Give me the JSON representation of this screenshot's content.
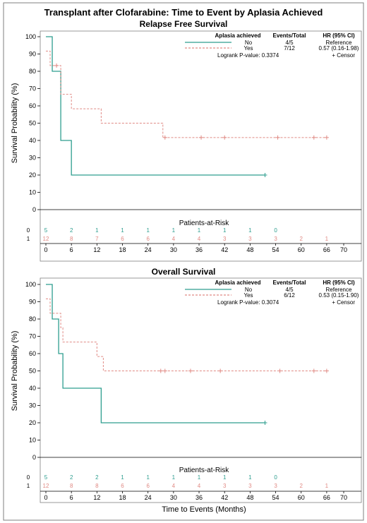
{
  "title": "Transplant after Clofarabine: Time to Event by Aplasia Achieved",
  "colors": {
    "no": "#2e9e8f",
    "yes": "#e08a84",
    "axis": "#000000",
    "frame": "#7f7f7f"
  },
  "chart_data": [
    {
      "type": "line",
      "subtitle": "Relapse Free Survival",
      "ylabel": "Survival Probability (%)",
      "xlabel": "",
      "xlim": [
        0,
        70
      ],
      "ylim": [
        0,
        100
      ],
      "x_ticks": [
        "0",
        "6",
        "12",
        "18",
        "24",
        "30",
        "36",
        "42",
        "48",
        "54",
        "60",
        "66",
        "70"
      ],
      "y_ticks": [
        "0",
        "10",
        "20",
        "30",
        "40",
        "50",
        "60",
        "70",
        "80",
        "90",
        "100"
      ],
      "legend": {
        "headers": {
          "group": "Aplasia achieved",
          "events": "Events/Total",
          "hr": "HR (95% CI)"
        },
        "rows": [
          {
            "key": "no",
            "name": "No",
            "events": "4/5",
            "hr": "Reference"
          },
          {
            "key": "yes",
            "name": "Yes",
            "events": "7/12",
            "hr": "0.57 (0.16-1.98)"
          }
        ],
        "pvalue": "Logrank P-value: 0.3374",
        "censor": "+ Censor"
      },
      "series": [
        {
          "key": "no",
          "name": "No",
          "style": "solid",
          "steps": [
            [
              0,
              100
            ],
            [
              1.5,
              80
            ],
            [
              3.5,
              40
            ],
            [
              6,
              20
            ],
            [
              51.5,
              20
            ]
          ],
          "censors": [
            [
              51.5,
              20
            ]
          ]
        },
        {
          "key": "yes",
          "name": "Yes",
          "style": "dashed",
          "steps": [
            [
              0,
              91.7
            ],
            [
              1,
              83.3
            ],
            [
              3.5,
              66.7
            ],
            [
              6,
              58.3
            ],
            [
              13,
              50
            ],
            [
              27.5,
              41.7
            ],
            [
              66,
              41.7
            ]
          ],
          "censors": [
            [
              2.5,
              83.3
            ],
            [
              28,
              41.7
            ],
            [
              36.5,
              41.7
            ],
            [
              42,
              41.7
            ],
            [
              54.5,
              41.7
            ],
            [
              63,
              41.7
            ],
            [
              66,
              41.7
            ]
          ]
        }
      ],
      "risk": {
        "title": "Patients-at-Risk",
        "groups": [
          {
            "key": "no",
            "label": "0",
            "counts": [
              "5",
              "2",
              "1",
              "1",
              "1",
              "1",
              "1",
              "1",
              "1",
              "0"
            ]
          },
          {
            "key": "yes",
            "label": "1",
            "counts": [
              "12",
              "8",
              "7",
              "6",
              "6",
              "4",
              "4",
              "3",
              "3",
              "3",
              "2",
              "1"
            ]
          }
        ]
      }
    },
    {
      "type": "line",
      "subtitle": "Overall Survival",
      "ylabel": "Survival Probability (%)",
      "xlabel": "Time to Events (Months)",
      "xlim": [
        0,
        70
      ],
      "ylim": [
        0,
        100
      ],
      "x_ticks": [
        "0",
        "6",
        "12",
        "18",
        "24",
        "30",
        "36",
        "42",
        "48",
        "54",
        "60",
        "66",
        "70"
      ],
      "y_ticks": [
        "0",
        "10",
        "20",
        "30",
        "40",
        "50",
        "60",
        "70",
        "80",
        "90",
        "100"
      ],
      "legend": {
        "headers": {
          "group": "Aplasia achieved",
          "events": "Events/Total",
          "hr": "HR (95% CI)"
        },
        "rows": [
          {
            "key": "no",
            "name": "No",
            "events": "4/5",
            "hr": "Reference"
          },
          {
            "key": "yes",
            "name": "Yes",
            "events": "6/12",
            "hr": "0.53 (0.15-1.90)"
          }
        ],
        "pvalue": "Logrank P-value: 0.3074",
        "censor": "+ Censor"
      },
      "series": [
        {
          "key": "no",
          "name": "No",
          "style": "solid",
          "steps": [
            [
              0,
              100
            ],
            [
              1.5,
              80
            ],
            [
              3,
              60
            ],
            [
              4,
              40
            ],
            [
              13,
              20
            ],
            [
              51.5,
              20
            ]
          ],
          "censors": [
            [
              51.5,
              20
            ]
          ]
        },
        {
          "key": "yes",
          "name": "Yes",
          "style": "dashed",
          "steps": [
            [
              0,
              91.7
            ],
            [
              1,
              83.3
            ],
            [
              3.5,
              75
            ],
            [
              4,
              66.7
            ],
            [
              12,
              58.3
            ],
            [
              13.5,
              50
            ],
            [
              66,
              50
            ]
          ],
          "censors": [
            [
              27,
              50
            ],
            [
              28,
              50
            ],
            [
              34,
              50
            ],
            [
              41,
              50
            ],
            [
              55,
              50
            ],
            [
              63,
              50
            ],
            [
              66,
              50
            ]
          ]
        }
      ],
      "risk": {
        "title": "Patients-at-Risk",
        "groups": [
          {
            "key": "no",
            "label": "0",
            "counts": [
              "5",
              "2",
              "2",
              "1",
              "1",
              "1",
              "1",
              "1",
              "1",
              "0"
            ]
          },
          {
            "key": "yes",
            "label": "1",
            "counts": [
              "12",
              "8",
              "8",
              "6",
              "6",
              "4",
              "4",
              "3",
              "3",
              "3",
              "2",
              "1"
            ]
          }
        ]
      }
    }
  ]
}
